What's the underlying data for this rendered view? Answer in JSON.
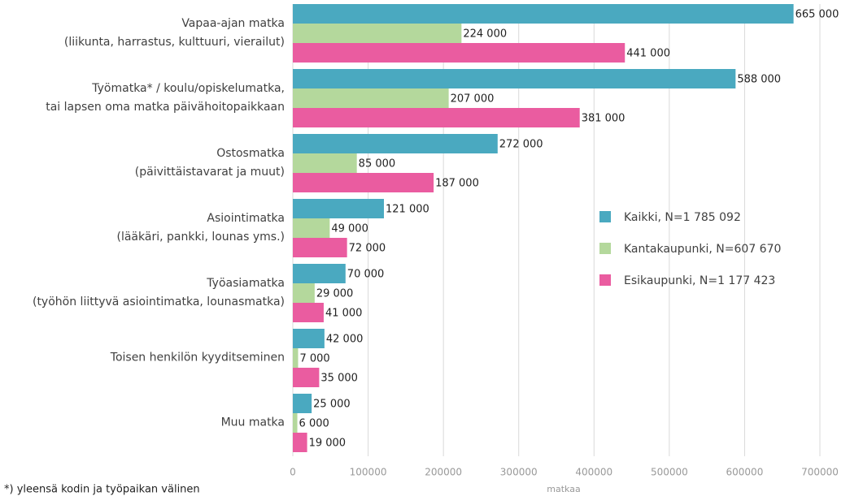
{
  "chart_data": {
    "type": "bar",
    "orientation": "horizontal",
    "categories": [
      "Vapaa-ajan matka\n(liikunta, harrastus, kulttuuri, vierailut)",
      "Työmatka* / koulu/opiskelumatka,\ntai lapsen oma matka päivähoitopaikkaan",
      "Ostosmatka\n(päivittäistavarat ja muut)",
      "Asiointimatka\n(lääkäri, pankki, lounas yms.)",
      "Työasiamatka\n(työhön liittyvä asiointimatka, lounasmatka)",
      "Toisen henkilön kyyditseminen",
      "Muu matka"
    ],
    "series": [
      {
        "name": "Kaikki, N=1 785 092",
        "color": "#4aa9c0",
        "values": [
          665000,
          588000,
          272000,
          121000,
          70000,
          42000,
          25000
        ],
        "value_labels": [
          "665 000",
          "588 000",
          "272 000",
          "121 000",
          "70 000",
          "42 000",
          "25 000"
        ]
      },
      {
        "name": "Kantakaupunki, N=607 670",
        "color": "#b4d89c",
        "values": [
          224000,
          207000,
          85000,
          49000,
          29000,
          7000,
          6000
        ],
        "value_labels": [
          "224 000",
          "207 000",
          "85 000",
          "49 000",
          "29 000",
          "7 000",
          "6 000"
        ]
      },
      {
        "name": "Esikaupunki, N=1 177 423",
        "color": "#ea5ca0",
        "values": [
          441000,
          381000,
          187000,
          72000,
          41000,
          35000,
          19000
        ],
        "value_labels": [
          "441 000",
          "381 000",
          "187 000",
          "72 000",
          "41 000",
          "35 000",
          "19 000"
        ]
      }
    ],
    "xlim": [
      0,
      700000
    ],
    "xticks": [
      0,
      100000,
      200000,
      300000,
      400000,
      500000,
      600000,
      700000
    ],
    "xlabel": "matkaa",
    "grid": true,
    "legend": "right",
    "footnote": "*) yleensä kodin ja työpaikan välinen"
  }
}
